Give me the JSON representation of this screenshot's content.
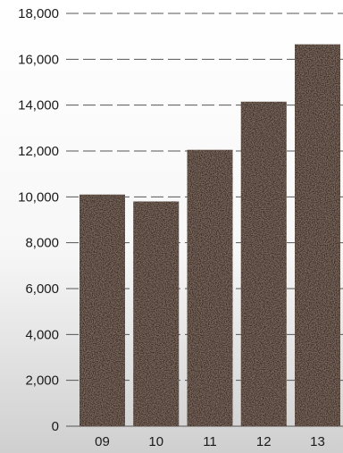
{
  "chart_data": {
    "type": "bar",
    "categories": [
      "09",
      "10",
      "11",
      "12",
      "13"
    ],
    "values": [
      10100,
      9800,
      12050,
      14150,
      16650
    ],
    "title": "",
    "xlabel": "",
    "ylabel": "",
    "ylim": [
      0,
      18000
    ],
    "yticks": [
      0,
      2000,
      4000,
      6000,
      8000,
      10000,
      12000,
      14000,
      16000,
      18000
    ],
    "ytick_labels": [
      "0",
      "2,000",
      "4,000",
      "6,000",
      "8,000",
      "10,000",
      "12,000",
      "14,000",
      "16,000",
      "18,000"
    ],
    "grid": "horizontal dashed",
    "legend": "none",
    "colors": {
      "bar": "#3a2a22",
      "bar_texture": "#5c463a",
      "grid": "#555555",
      "text": "#1a1a1a"
    }
  }
}
